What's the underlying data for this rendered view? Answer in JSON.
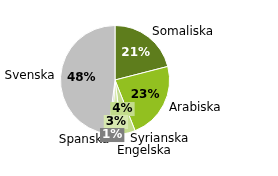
{
  "chart_data": {
    "type": "pie",
    "categories": [
      "Somaliska",
      "Arabiska",
      "Syrianska",
      "Engelska",
      "Spanska",
      "Svenska"
    ],
    "values": [
      21,
      23,
      4,
      3,
      1,
      48
    ],
    "value_labels": [
      "21%",
      "23%",
      "4%",
      "3%",
      "1%",
      "48%"
    ],
    "colors": [
      "#5e7d1c",
      "#92c020",
      "#c3dc8c",
      "#d7e8b0",
      "#7f7f7f",
      "#c0c0c0"
    ],
    "data_labels": true
  }
}
